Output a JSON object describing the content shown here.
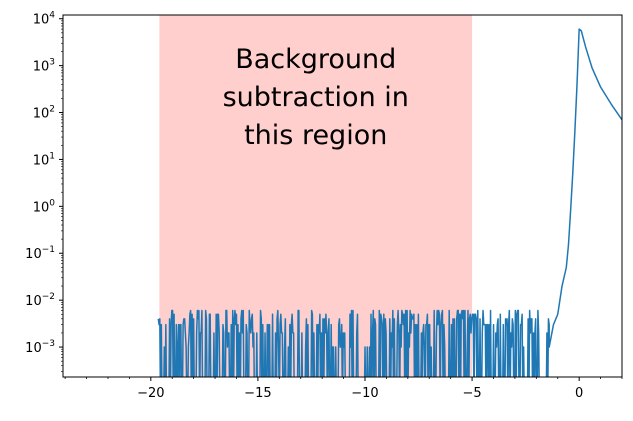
{
  "chart_data": {
    "type": "line",
    "title": "",
    "xlabel": "",
    "ylabel": "",
    "xlim": [
      -24.1,
      2.0
    ],
    "ylim": [
      0.00023,
      12000
    ],
    "yscale": "log",
    "grid": false,
    "legend": "none",
    "colors": {
      "line": "#1f77b4",
      "shaded_region": "#ff9f9b"
    },
    "shaded_region": {
      "x_start": -19.6,
      "x_end": -5.0
    },
    "annotation": {
      "lines": [
        "Background",
        "subtraction in",
        "this region"
      ]
    },
    "x_ticks": [
      {
        "value": -20,
        "label": "−20"
      },
      {
        "value": -15,
        "label": "−15"
      },
      {
        "value": -10,
        "label": "−10"
      },
      {
        "value": -5,
        "label": "−5"
      },
      {
        "value": 0,
        "label": "0"
      }
    ],
    "y_ticks": [
      {
        "exp": -3,
        "base": "10",
        "sup": "−3"
      },
      {
        "exp": -2,
        "base": "10",
        "sup": "−2"
      },
      {
        "exp": -1,
        "base": "10",
        "sup": "−1"
      },
      {
        "exp": 0,
        "base": "10",
        "sup": "0"
      },
      {
        "exp": 1,
        "base": "10",
        "sup": "1"
      },
      {
        "exp": 2,
        "base": "10",
        "sup": "2"
      },
      {
        "exp": 3,
        "base": "10",
        "sup": "3"
      },
      {
        "exp": 4,
        "base": "10",
        "sup": "4"
      }
    ],
    "series": [
      {
        "noise": {
          "x_start": -19.65,
          "x_end": -1.4,
          "levels": [
            0.001,
            0.002,
            0.003,
            0.004,
            0.005,
            0.006
          ],
          "min_level": 0.0008
        },
        "points": [
          {
            "x": -1.4,
            "y": 0.001
          },
          {
            "x": -1.2,
            "y": 0.003
          },
          {
            "x": -1.0,
            "y": 0.005
          },
          {
            "x": -0.8,
            "y": 0.02
          },
          {
            "x": -0.6,
            "y": 0.05
          },
          {
            "x": -0.5,
            "y": 0.15
          },
          {
            "x": -0.4,
            "y": 0.8
          },
          {
            "x": -0.3,
            "y": 5
          },
          {
            "x": -0.2,
            "y": 40
          },
          {
            "x": -0.1,
            "y": 400
          },
          {
            "x": 0.0,
            "y": 6000
          },
          {
            "x": 0.1,
            "y": 5500
          },
          {
            "x": 0.3,
            "y": 2500
          },
          {
            "x": 0.6,
            "y": 900
          },
          {
            "x": 1.0,
            "y": 350
          },
          {
            "x": 1.5,
            "y": 150
          },
          {
            "x": 2.0,
            "y": 70
          }
        ]
      }
    ]
  }
}
